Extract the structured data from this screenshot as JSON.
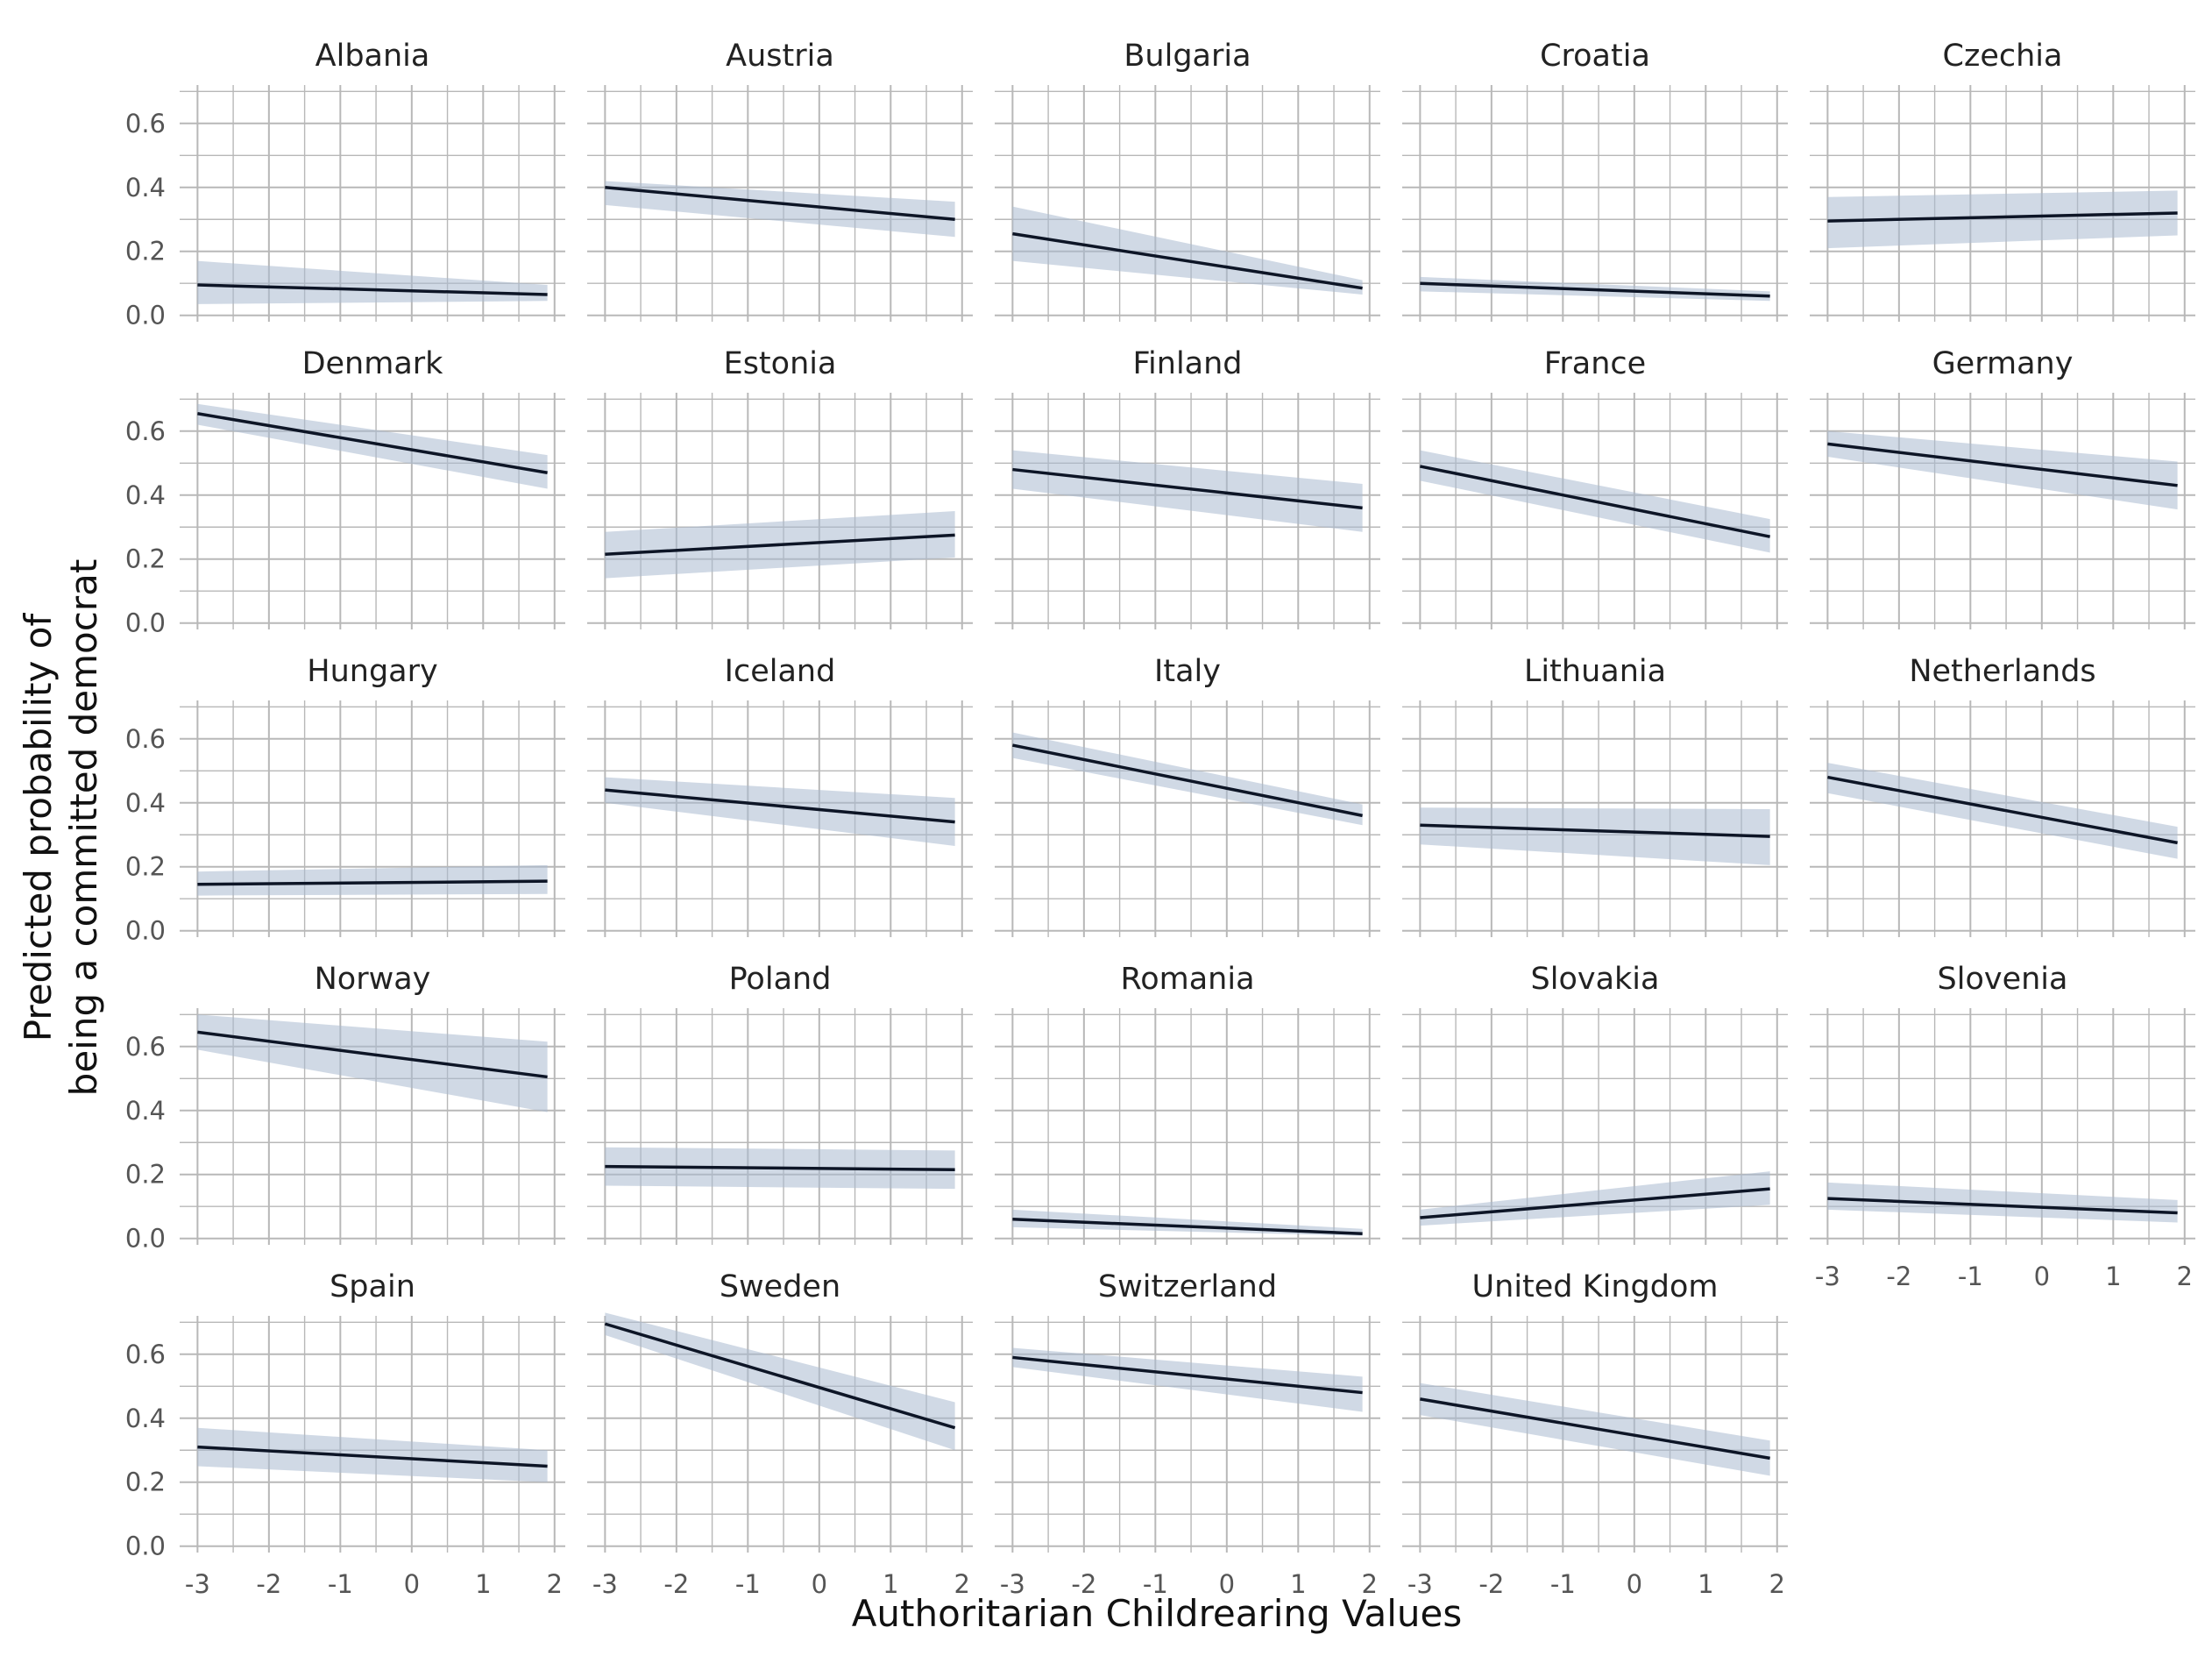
{
  "chart_data": {
    "type": "line",
    "xlabel": "Authoritarian Childrearing Values",
    "ylabel_lines": [
      "Predicted probability of",
      "being a committed democrat"
    ],
    "xlim": [
      -3.25,
      2.15
    ],
    "ylim": [
      -0.02,
      0.72
    ],
    "x_ticks": [
      -3,
      -2,
      -1,
      0,
      1,
      2
    ],
    "x_tick_labels": [
      "-3",
      "-2",
      "-1",
      "0",
      "1",
      "2"
    ],
    "y_ticks": [
      0.0,
      0.2,
      0.4,
      0.6
    ],
    "y_tick_labels": [
      "0.0",
      "0.2",
      "0.4",
      "0.6"
    ],
    "x_range": [
      -3,
      1.9
    ],
    "panels": [
      {
        "name": "Albania",
        "start": 0.095,
        "end": 0.065,
        "lo": [
          0.035,
          0.045
        ],
        "hi": [
          0.17,
          0.095
        ]
      },
      {
        "name": "Austria",
        "start": 0.4,
        "end": 0.3,
        "lo": [
          0.345,
          0.245
        ],
        "hi": [
          0.42,
          0.355
        ]
      },
      {
        "name": "Bulgaria",
        "start": 0.255,
        "end": 0.085,
        "lo": [
          0.17,
          0.065
        ],
        "hi": [
          0.34,
          0.11
        ]
      },
      {
        "name": "Croatia",
        "start": 0.1,
        "end": 0.06,
        "lo": [
          0.075,
          0.045
        ],
        "hi": [
          0.12,
          0.075
        ]
      },
      {
        "name": "Czechia",
        "start": 0.295,
        "end": 0.32,
        "lo": [
          0.21,
          0.25
        ],
        "hi": [
          0.37,
          0.39
        ]
      },
      {
        "name": "Denmark",
        "start": 0.655,
        "end": 0.47,
        "lo": [
          0.62,
          0.42
        ],
        "hi": [
          0.685,
          0.525
        ]
      },
      {
        "name": "Estonia",
        "start": 0.215,
        "end": 0.275,
        "lo": [
          0.14,
          0.205
        ],
        "hi": [
          0.285,
          0.35
        ]
      },
      {
        "name": "Finland",
        "start": 0.48,
        "end": 0.36,
        "lo": [
          0.42,
          0.285
        ],
        "hi": [
          0.54,
          0.435
        ]
      },
      {
        "name": "France",
        "start": 0.49,
        "end": 0.27,
        "lo": [
          0.445,
          0.22
        ],
        "hi": [
          0.54,
          0.325
        ]
      },
      {
        "name": "Germany",
        "start": 0.56,
        "end": 0.43,
        "lo": [
          0.52,
          0.355
        ],
        "hi": [
          0.6,
          0.505
        ]
      },
      {
        "name": "Hungary",
        "start": 0.145,
        "end": 0.155,
        "lo": [
          0.11,
          0.115
        ],
        "hi": [
          0.185,
          0.205
        ]
      },
      {
        "name": "Iceland",
        "start": 0.44,
        "end": 0.34,
        "lo": [
          0.4,
          0.265
        ],
        "hi": [
          0.48,
          0.415
        ]
      },
      {
        "name": "Italy",
        "start": 0.58,
        "end": 0.36,
        "lo": [
          0.54,
          0.33
        ],
        "hi": [
          0.62,
          0.395
        ]
      },
      {
        "name": "Lithuania",
        "start": 0.33,
        "end": 0.295,
        "lo": [
          0.27,
          0.205
        ],
        "hi": [
          0.385,
          0.38
        ]
      },
      {
        "name": "Netherlands",
        "start": 0.48,
        "end": 0.275,
        "lo": [
          0.43,
          0.225
        ],
        "hi": [
          0.525,
          0.325
        ]
      },
      {
        "name": "Norway",
        "start": 0.645,
        "end": 0.505,
        "lo": [
          0.59,
          0.395
        ],
        "hi": [
          0.7,
          0.615
        ]
      },
      {
        "name": "Poland",
        "start": 0.225,
        "end": 0.215,
        "lo": [
          0.165,
          0.155
        ],
        "hi": [
          0.285,
          0.275
        ]
      },
      {
        "name": "Romania",
        "start": 0.06,
        "end": 0.015,
        "lo": [
          0.035,
          0.008
        ],
        "hi": [
          0.09,
          0.03
        ]
      },
      {
        "name": "Slovakia",
        "start": 0.065,
        "end": 0.155,
        "lo": [
          0.04,
          0.105
        ],
        "hi": [
          0.09,
          0.21
        ]
      },
      {
        "name": "Slovenia",
        "start": 0.125,
        "end": 0.08,
        "lo": [
          0.09,
          0.05
        ],
        "hi": [
          0.175,
          0.12
        ]
      },
      {
        "name": "Spain",
        "start": 0.31,
        "end": 0.25,
        "lo": [
          0.25,
          0.2
        ],
        "hi": [
          0.37,
          0.3
        ]
      },
      {
        "name": "Sweden",
        "start": 0.695,
        "end": 0.37,
        "lo": [
          0.66,
          0.3
        ],
        "hi": [
          0.73,
          0.45
        ]
      },
      {
        "name": "Switzerland",
        "start": 0.59,
        "end": 0.48,
        "lo": [
          0.56,
          0.42
        ],
        "hi": [
          0.62,
          0.53
        ]
      },
      {
        "name": "United Kingdom",
        "start": 0.46,
        "end": 0.275,
        "lo": [
          0.41,
          0.22
        ],
        "hi": [
          0.51,
          0.33
        ]
      }
    ]
  }
}
